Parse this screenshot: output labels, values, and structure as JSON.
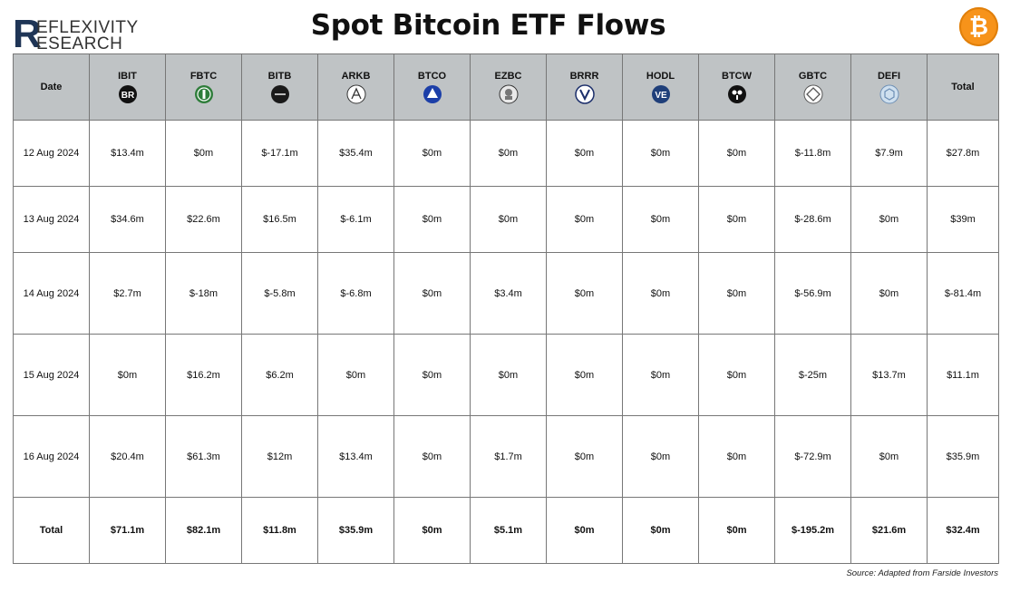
{
  "brand": {
    "line1": "EFLEXIVITY",
    "line2": "ESEARCH",
    "initial": "R"
  },
  "title": "Spot Bitcoin ETF Flows",
  "btc_symbol": "₿",
  "source": "Source: Adapted from Farside Investors",
  "chart_data": {
    "type": "table",
    "title": "Spot Bitcoin ETF Flows",
    "columns": [
      "Date",
      "IBIT",
      "FBTC",
      "BITB",
      "ARKB",
      "BTCO",
      "EZBC",
      "BRRR",
      "HODL",
      "BTCW",
      "GBTC",
      "DEFI",
      "Total"
    ],
    "column_logos": [
      "",
      "blackrock-logo",
      "fidelity-logo",
      "bitwise-logo",
      "ark-logo",
      "invesco-logo",
      "franklin-logo",
      "valkyrie-logo",
      "vaneck-logo",
      "wisdomtree-logo",
      "grayscale-logo",
      "hashdex-logo",
      ""
    ],
    "rows": [
      [
        "12 Aug 2024",
        "$13.4m",
        "$0m",
        "$-17.1m",
        "$35.4m",
        "$0m",
        "$0m",
        "$0m",
        "$0m",
        "$0m",
        "$-11.8m",
        "$7.9m",
        "$27.8m"
      ],
      [
        "13 Aug 2024",
        "$34.6m",
        "$22.6m",
        "$16.5m",
        "$-6.1m",
        "$0m",
        "$0m",
        "$0m",
        "$0m",
        "$0m",
        "$-28.6m",
        "$0m",
        "$39m"
      ],
      [
        "14 Aug 2024",
        "$2.7m",
        "$-18m",
        "$-5.8m",
        "$-6.8m",
        "$0m",
        "$3.4m",
        "$0m",
        "$0m",
        "$0m",
        "$-56.9m",
        "$0m",
        "$-81.4m"
      ],
      [
        "15 Aug 2024",
        "$0m",
        "$16.2m",
        "$6.2m",
        "$0m",
        "$0m",
        "$0m",
        "$0m",
        "$0m",
        "$0m",
        "$-25m",
        "$13.7m",
        "$11.1m"
      ],
      [
        "16 Aug 2024",
        "$20.4m",
        "$61.3m",
        "$12m",
        "$13.4m",
        "$0m",
        "$1.7m",
        "$0m",
        "$0m",
        "$0m",
        "$-72.9m",
        "$0m",
        "$35.9m"
      ]
    ],
    "total_row": [
      "Total",
      "$71.1m",
      "$82.1m",
      "$11.8m",
      "$35.9m",
      "$0m",
      "$5.1m",
      "$0m",
      "$0m",
      "$0m",
      "$-195.2m",
      "$21.6m",
      "$32.4m"
    ],
    "header_color": "#bfc3c5"
  }
}
